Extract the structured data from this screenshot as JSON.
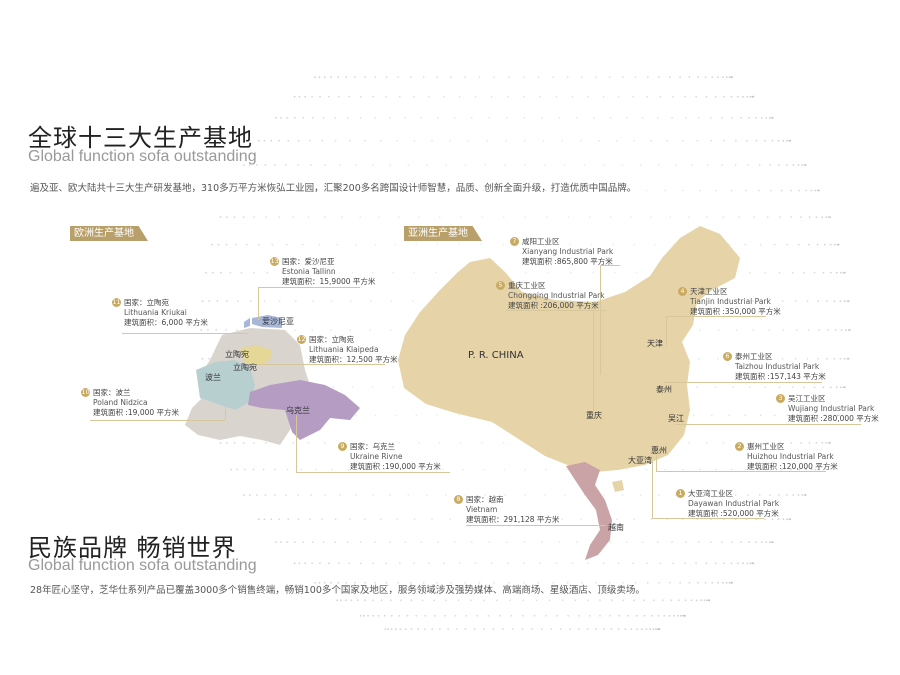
{
  "section1": {
    "title": "全球十三大生产基地",
    "subtitle": "Global function sofa outstanding",
    "description": "遍及亚、欧大陆共十三大生产研发基地，310多万平方米恢弘工业园，汇聚200多名跨国设计师智慧，品质、创新全面升级，打造优质中国品牌。"
  },
  "section2": {
    "title": "民族品牌 畅销世界",
    "subtitle": "Global function sofa outstanding",
    "description": "28年匠心坚守，芝华仕系列产品已覆盖3000多个销售终端，畅销100多个国家及地区，服务领域涉及强势媒体、高端商场、星级酒店、顶级卖场。"
  },
  "badges": {
    "europe": "欧洲生产基地",
    "asia": "亚洲生产基地"
  },
  "map_labels": {
    "estonia": "爱沙尼亚",
    "lithuania1": "立陶宛",
    "lithuania2": "立陶宛",
    "poland": "波兰",
    "ukraine": "乌克兰",
    "china": "P. R. CHINA",
    "tianjin": "天津",
    "taizhou": "泰州",
    "wujiang": "吴江",
    "huizhou": "惠州",
    "dayawan": "大亚湾",
    "chongqing": "重庆",
    "vietnam": "越南"
  },
  "callouts": {
    "c13": {
      "num": "13",
      "l1": "国家：爱沙尼亚",
      "l2": "Estonia Tallinn",
      "l3": "建筑面积：15,9000 平方米"
    },
    "c11": {
      "num": "11",
      "l1": "国家：立陶宛",
      "l2": "Lithuania Kriukai",
      "l3": "建筑面积：6,000 平方米"
    },
    "c12": {
      "num": "12",
      "l1": "国家：立陶宛",
      "l2": "Lithuania Klaipeda",
      "l3": "建筑面积：12,500 平方米"
    },
    "c10": {
      "num": "10",
      "l1": "国家：波兰",
      "l2": "Poland Nidzica",
      "l3": "建筑面积 :19,000 平方米"
    },
    "c9": {
      "num": "9",
      "l1": "国家：乌克兰",
      "l2": "Ukraine Rivne",
      "l3": "建筑面积 :190,000 平方米"
    },
    "c7": {
      "num": "7",
      "l1": "咸阳工业区",
      "l2": "Xianyang Industrial Park",
      "l3": "建筑面积 :865,800 平方米"
    },
    "c5": {
      "num": "5",
      "l1": "重庆工业区",
      "l2": "Chongqing Industrial Park",
      "l3": "建筑面积 :206,000 平方米"
    },
    "c4": {
      "num": "4",
      "l1": "天津工业区",
      "l2": "Tianjin Industrial Park",
      "l3": "建筑面积 :350,000 平方米"
    },
    "c6": {
      "num": "6",
      "l1": "泰州工业区",
      "l2": "Taizhou Industrial Park",
      "l3": "建筑面积 :157,143 平方米"
    },
    "c3": {
      "num": "3",
      "l1": "吴江工业区",
      "l2": "Wujiang Industrial Park",
      "l3": "建筑面积 :280,000 平方米"
    },
    "c2": {
      "num": "2",
      "l1": "惠州工业区",
      "l2": "Huizhou Industrial Park",
      "l3": "建筑面积 :120,000 平方米"
    },
    "c1": {
      "num": "1",
      "l1": "大亚湾工业区",
      "l2": "Dayawan Industrial Park",
      "l3": "建筑面积 :520,000 平方米"
    },
    "c8": {
      "num": "8",
      "l1": "国家：越南",
      "l2": "Vietnam",
      "l3": "建筑面积：291,128 平方米"
    }
  },
  "colors": {
    "gold": "#b9a06a",
    "china": "#e6d4a8",
    "vietnam": "#c9a3a6",
    "ukraine": "#b49cc2",
    "poland": "#b8cfd0",
    "lithuania": "#e5d795",
    "estonia": "#a8b6d8",
    "europe_base": "#d9d4ce"
  }
}
